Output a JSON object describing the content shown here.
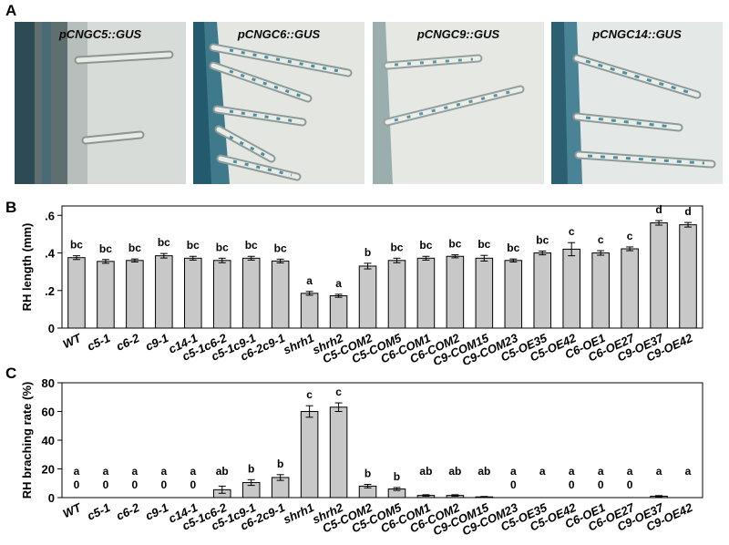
{
  "panels": {
    "a": "A",
    "b": "B",
    "c": "C"
  },
  "micrographs": [
    {
      "label": "pCNGC5::GUS"
    },
    {
      "label": "pCNGC6::GUS"
    },
    {
      "label": "pCNGC9::GUS"
    },
    {
      "label": "pCNGC14::GUS"
    }
  ],
  "chart_data": [
    {
      "type": "bar",
      "ylabel": "RH length (mm)",
      "ylim": [
        0,
        0.65
      ],
      "yticks": [
        0,
        0.2,
        0.4,
        0.6
      ],
      "ytick_labels": [
        "0",
        ".2",
        ".4",
        ".6"
      ],
      "categories": [
        "WT",
        "c5-1",
        "c6-2",
        "c9-1",
        "c14-1",
        "c5-1c6-2",
        "c5-1c9-1",
        "c6-2c9-1",
        "shrh1",
        "shrh2",
        "C5-COM2",
        "C5-COM5",
        "C6-COM1",
        "C6-COM2",
        "C9-COM15",
        "C9-COM23",
        "C5-OE35",
        "C5-OE42",
        "C6-OE1",
        "C6-OE27",
        "C9-OE37",
        "C9-OE42"
      ],
      "values": [
        0.375,
        0.355,
        0.36,
        0.385,
        0.372,
        0.36,
        0.372,
        0.357,
        0.185,
        0.172,
        0.33,
        0.36,
        0.372,
        0.382,
        0.372,
        0.36,
        0.4,
        0.42,
        0.4,
        0.422,
        0.56,
        0.55
      ],
      "errors": [
        0.01,
        0.01,
        0.008,
        0.012,
        0.01,
        0.012,
        0.01,
        0.01,
        0.01,
        0.008,
        0.015,
        0.012,
        0.01,
        0.008,
        0.015,
        0.008,
        0.01,
        0.035,
        0.012,
        0.01,
        0.012,
        0.012
      ],
      "letters": [
        "bc",
        "bc",
        "bc",
        "bc",
        "bc",
        "bc",
        "bc",
        "bc",
        "a",
        "a",
        "b",
        "bc",
        "bc",
        "bc",
        "bc",
        "bc",
        "bc",
        "c",
        "c",
        "c",
        "d",
        "d"
      ],
      "grid": false
    },
    {
      "type": "bar",
      "ylabel": "RH braching rate (%)",
      "ylim": [
        0,
        80
      ],
      "yticks": [
        0,
        20,
        40,
        60,
        80
      ],
      "ytick_labels": [
        "0",
        "20",
        "40",
        "60",
        "80"
      ],
      "categories": [
        "WT",
        "c5-1",
        "c6-2",
        "c9-1",
        "c14-1",
        "c5-1c6-2",
        "c5-1c9-1",
        "c6-2c9-1",
        "shrh1",
        "shrh2",
        "C5-COM2",
        "C5-COM5",
        "C6-COM1",
        "C6-COM2",
        "C9-COM15",
        "C9-COM23",
        "C5-OE35",
        "C5-OE42",
        "C6-OE1",
        "C6-OE27",
        "C9-OE37",
        "C9-OE42"
      ],
      "values": [
        0,
        0,
        0,
        0,
        0,
        5.5,
        10.5,
        14,
        60,
        63,
        8,
        6,
        1.5,
        1.5,
        0.5,
        0,
        0,
        0,
        0,
        0,
        1,
        0
      ],
      "errors": [
        0,
        0,
        0,
        0,
        0,
        2.5,
        2,
        2,
        4,
        3,
        1.2,
        1,
        0.5,
        0.5,
        0.3,
        0,
        0,
        0,
        0,
        0,
        0.4,
        0
      ],
      "letters": [
        "a",
        "a",
        "a",
        "a",
        "a",
        "ab",
        "b",
        "b",
        "c",
        "c",
        "b",
        "b",
        "ab",
        "ab",
        "ab",
        "a",
        "a",
        "a",
        "a",
        "a",
        "a",
        "a"
      ],
      "zero_labels": [
        "0",
        "0",
        "0",
        "0",
        "0",
        "",
        "",
        "",
        "",
        "",
        "",
        "",
        "",
        "",
        "",
        "0",
        "",
        "0",
        "0",
        "0",
        "",
        ""
      ],
      "grid": false
    }
  ]
}
